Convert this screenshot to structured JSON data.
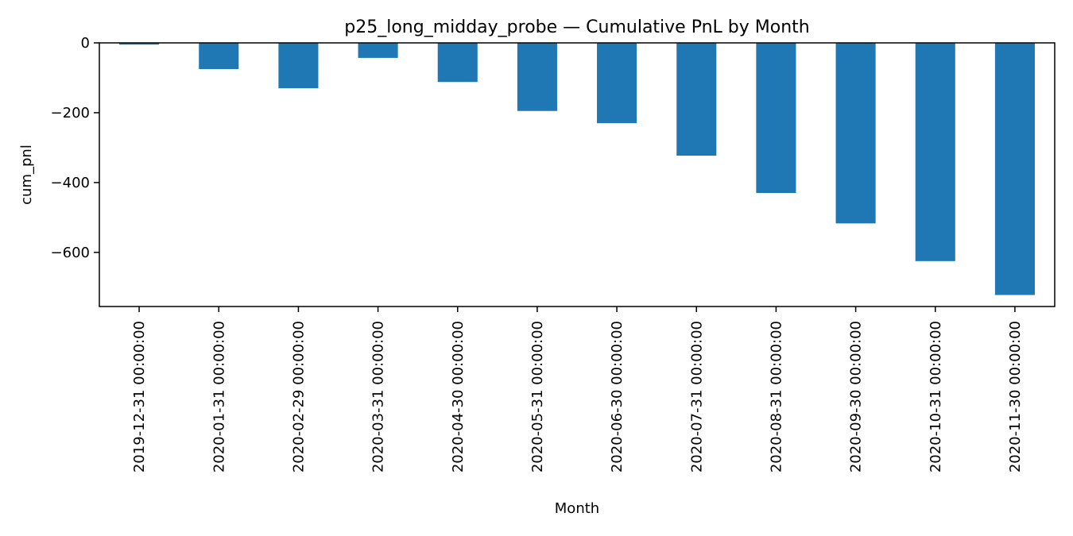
{
  "colors": {
    "bar": "#1f77b4",
    "axis": "#000000",
    "background": "#ffffff"
  },
  "chart_data": {
    "type": "bar",
    "title": "p25_long_midday_probe — Cumulative PnL by Month",
    "xlabel": "Month",
    "ylabel": "cum_pnl",
    "ylim": [
      -755,
      0
    ],
    "yticks": [
      0,
      -200,
      -400,
      -600
    ],
    "ytick_labels": [
      "0",
      "−200",
      "−400",
      "−600"
    ],
    "grid": false,
    "legend": "none",
    "categories": [
      "2019-12-31 00:00:00",
      "2020-01-31 00:00:00",
      "2020-02-29 00:00:00",
      "2020-03-31 00:00:00",
      "2020-04-30 00:00:00",
      "2020-05-31 00:00:00",
      "2020-06-30 00:00:00",
      "2020-07-31 00:00:00",
      "2020-08-31 00:00:00",
      "2020-09-30 00:00:00",
      "2020-10-31 00:00:00",
      "2020-11-30 00:00:00"
    ],
    "series": [
      {
        "name": "cum_pnl",
        "values": [
          -5,
          -75,
          -130,
          -43,
          -112,
          -195,
          -230,
          -323,
          -430,
          -517,
          -625,
          -722
        ]
      }
    ]
  }
}
